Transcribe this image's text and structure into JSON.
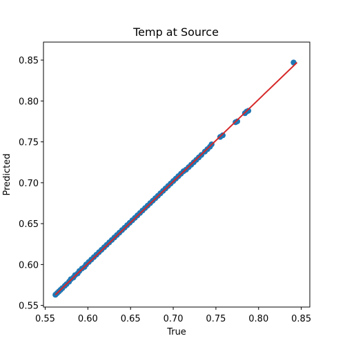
{
  "chart_data": {
    "type": "scatter",
    "title": "Temp at Source",
    "xlabel": "True",
    "ylabel": "Predicted",
    "xlim": [
      0.548,
      0.86
    ],
    "ylim": [
      0.548,
      0.872
    ],
    "xticks": [
      "0.55",
      "0.60",
      "0.65",
      "0.70",
      "0.75",
      "0.80",
      "0.85"
    ],
    "yticks": [
      "0.55",
      "0.60",
      "0.65",
      "0.70",
      "0.75",
      "0.80",
      "0.85"
    ],
    "grid": false,
    "series": [
      {
        "kind": "points",
        "color": "#1f77b4",
        "points": [
          [
            0.562,
            0.563
          ],
          [
            0.564,
            0.565
          ],
          [
            0.566,
            0.567
          ],
          [
            0.568,
            0.569
          ],
          [
            0.57,
            0.571
          ],
          [
            0.573,
            0.574
          ],
          [
            0.575,
            0.576
          ],
          [
            0.578,
            0.579
          ],
          [
            0.58,
            0.582
          ],
          [
            0.583,
            0.584
          ],
          [
            0.585,
            0.587
          ],
          [
            0.588,
            0.589
          ],
          [
            0.59,
            0.592
          ],
          [
            0.593,
            0.595
          ],
          [
            0.596,
            0.597
          ],
          [
            0.598,
            0.6
          ],
          [
            0.601,
            0.603
          ],
          [
            0.604,
            0.606
          ],
          [
            0.607,
            0.609
          ],
          [
            0.61,
            0.612
          ],
          [
            0.613,
            0.615
          ],
          [
            0.616,
            0.618
          ],
          [
            0.619,
            0.621
          ],
          [
            0.622,
            0.624
          ],
          [
            0.625,
            0.627
          ],
          [
            0.628,
            0.63
          ],
          [
            0.631,
            0.633
          ],
          [
            0.634,
            0.636
          ],
          [
            0.637,
            0.639
          ],
          [
            0.64,
            0.642
          ],
          [
            0.643,
            0.645
          ],
          [
            0.646,
            0.648
          ],
          [
            0.649,
            0.651
          ],
          [
            0.652,
            0.654
          ],
          [
            0.655,
            0.657
          ],
          [
            0.658,
            0.66
          ],
          [
            0.661,
            0.663
          ],
          [
            0.664,
            0.666
          ],
          [
            0.667,
            0.669
          ],
          [
            0.67,
            0.672
          ],
          [
            0.673,
            0.675
          ],
          [
            0.676,
            0.678
          ],
          [
            0.679,
            0.681
          ],
          [
            0.682,
            0.684
          ],
          [
            0.685,
            0.687
          ],
          [
            0.688,
            0.69
          ],
          [
            0.691,
            0.693
          ],
          [
            0.694,
            0.696
          ],
          [
            0.697,
            0.699
          ],
          [
            0.7,
            0.702
          ],
          [
            0.703,
            0.705
          ],
          [
            0.706,
            0.708
          ],
          [
            0.709,
            0.711
          ],
          [
            0.712,
            0.714
          ],
          [
            0.715,
            0.716
          ],
          [
            0.718,
            0.719
          ],
          [
            0.721,
            0.722
          ],
          [
            0.724,
            0.725
          ],
          [
            0.727,
            0.728
          ],
          [
            0.73,
            0.731
          ],
          [
            0.733,
            0.734
          ],
          [
            0.737,
            0.738
          ],
          [
            0.74,
            0.741
          ],
          [
            0.743,
            0.744
          ],
          [
            0.745,
            0.747
          ],
          [
            0.755,
            0.756
          ],
          [
            0.758,
            0.758
          ],
          [
            0.773,
            0.774
          ],
          [
            0.775,
            0.775
          ],
          [
            0.784,
            0.785
          ],
          [
            0.786,
            0.787
          ],
          [
            0.788,
            0.788
          ],
          [
            0.841,
            0.847
          ]
        ]
      },
      {
        "kind": "line",
        "color": "#d62728",
        "points": [
          [
            0.562,
            0.563
          ],
          [
            0.845,
            0.847
          ]
        ]
      }
    ]
  }
}
